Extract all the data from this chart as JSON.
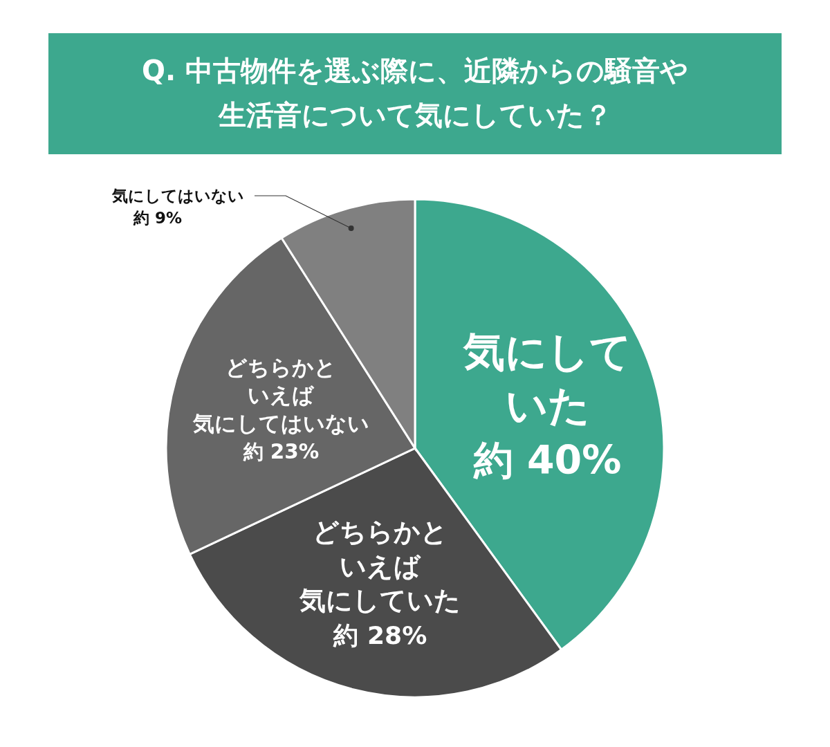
{
  "chart_data": {
    "type": "pie",
    "title": "Q. 中古物件を選ぶ際に、近隣からの騒音や生活音について気にしていた？",
    "categories": [
      "気にしていた",
      "どちらかといえば気にしていた",
      "どちらかといえば気にしてはいない",
      "気にしてはいない"
    ],
    "values": [
      40,
      28,
      23,
      9
    ],
    "colors": [
      "#3da88e",
      "#4b4b4b",
      "#666666",
      "#808080"
    ],
    "value_labels": [
      "約 40%",
      "約 28%",
      "約 23%",
      "約 9%"
    ]
  }
}
